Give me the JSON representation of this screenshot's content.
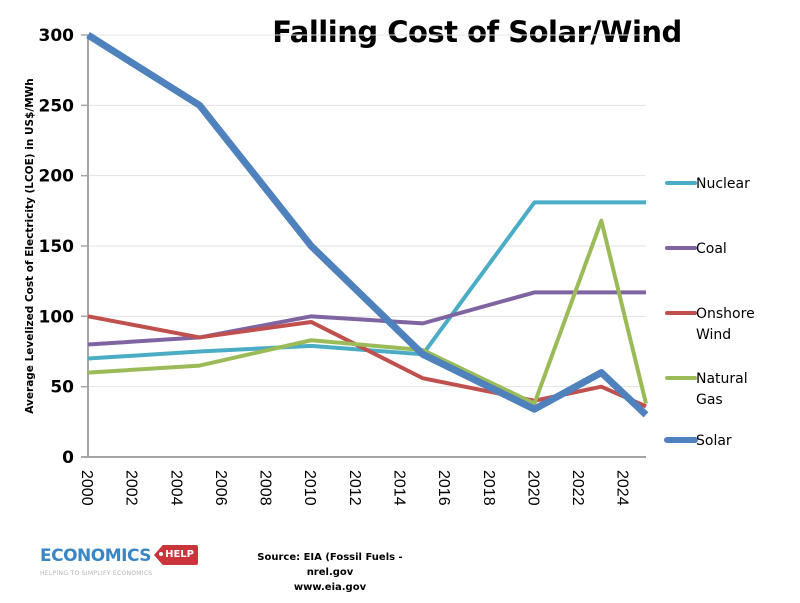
{
  "chart_data": {
    "type": "line",
    "title": "Falling Cost of Solar/Wind",
    "xlabel": "",
    "ylabel": "Average Levelized Cost of Electricity (LCOE) in US$/MWh",
    "xlim": [
      2000,
      2025
    ],
    "ylim": [
      0,
      300
    ],
    "x_ticks": [
      "2000",
      "2002",
      "2004",
      "2006",
      "2008",
      "2010",
      "2012",
      "2014",
      "2016",
      "2018",
      "2020",
      "2022",
      "2024"
    ],
    "y_ticks": [
      "0",
      "50",
      "100",
      "150",
      "200",
      "250",
      "300"
    ],
    "grid": "horizontal",
    "legend_position": "right",
    "x": [
      2000,
      2005,
      2010,
      2015,
      2020,
      2023,
      2025
    ],
    "series": [
      {
        "name": "Nuclear",
        "color": "#4bacc6",
        "values": [
          70,
          75,
          79,
          73,
          181,
          181,
          181
        ]
      },
      {
        "name": "Coal",
        "color": "#8064a2",
        "values": [
          80,
          85,
          100,
          95,
          117,
          117,
          117
        ]
      },
      {
        "name": "Onshore Wind",
        "legend_lines": [
          "Onshore",
          "Wind"
        ],
        "color": "#c0504d",
        "values": [
          100,
          85,
          96,
          56,
          40,
          50,
          36
        ]
      },
      {
        "name": "Natural Gas",
        "legend_lines": [
          "Natural",
          "Gas"
        ],
        "color": "#9bbb59",
        "values": [
          60,
          65,
          83,
          76,
          38,
          168,
          38
        ]
      },
      {
        "name": "Solar",
        "color": "#4f81bd",
        "values": [
          300,
          250,
          150,
          73,
          34,
          60,
          30
        ]
      }
    ]
  },
  "footer": {
    "source_line1": "Source: EIA (Fossil Fuels - nrel.gov",
    "source_line2": "www.eia.gov",
    "logo_word": "ECONOMICS",
    "logo_tag": "HELP",
    "logo_tagline": "HELPING TO SIMPLIFY ECONOMICS"
  }
}
